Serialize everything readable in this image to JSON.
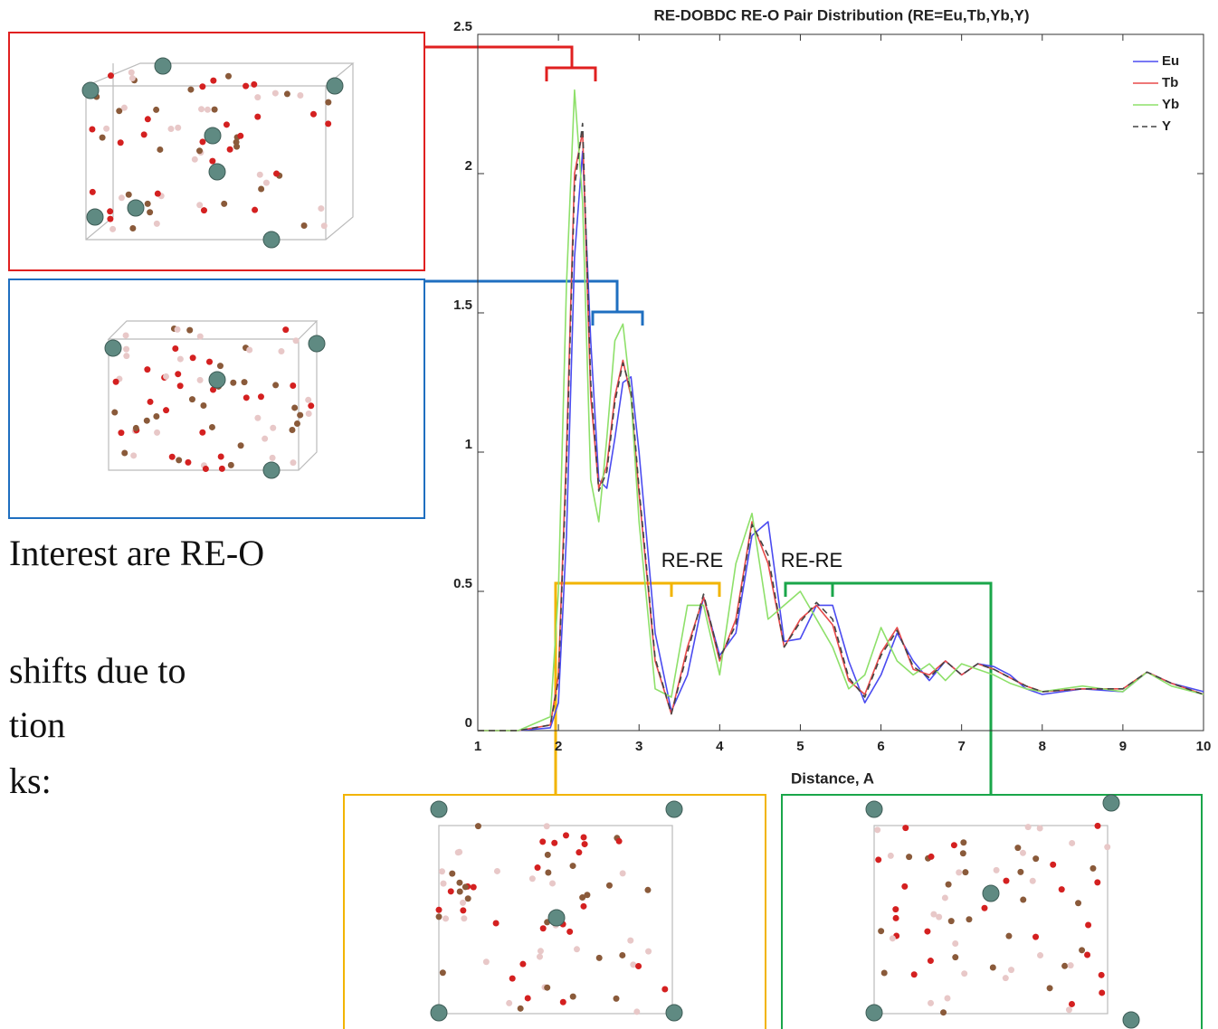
{
  "chart_data": {
    "type": "line",
    "title": "RE-DOBDC RE-O Pair Distribution (RE=Eu,Tb,Yb,Y)",
    "x_label": "Distance, A",
    "x": [
      1,
      1.5,
      1.9,
      2.0,
      2.1,
      2.2,
      2.3,
      2.4,
      2.5,
      2.6,
      2.7,
      2.8,
      2.9,
      3.0,
      3.2,
      3.4,
      3.6,
      3.8,
      4.0,
      4.2,
      4.4,
      4.6,
      4.8,
      5.0,
      5.2,
      5.4,
      5.6,
      5.8,
      6.0,
      6.2,
      6.4,
      6.6,
      6.8,
      7.0,
      7.2,
      7.4,
      7.6,
      7.8,
      8.0,
      8.5,
      9.0,
      9.3,
      9.6,
      10
    ],
    "series": [
      {
        "name": "Eu",
        "color": "#4b4bf0",
        "values": [
          0,
          0,
          0.01,
          0.1,
          0.7,
          1.7,
          2.08,
          1.4,
          0.9,
          0.87,
          1.05,
          1.25,
          1.27,
          1.0,
          0.35,
          0.07,
          0.2,
          0.48,
          0.27,
          0.35,
          0.7,
          0.75,
          0.32,
          0.33,
          0.45,
          0.45,
          0.25,
          0.1,
          0.2,
          0.35,
          0.25,
          0.18,
          0.25,
          0.2,
          0.24,
          0.23,
          0.2,
          0.15,
          0.13,
          0.15,
          0.14,
          0.21,
          0.17,
          0.14
        ]
      },
      {
        "name": "Tb",
        "color": "#e84a4a",
        "values": [
          0,
          0,
          0.02,
          0.2,
          1.0,
          2.0,
          2.15,
          1.2,
          0.87,
          0.95,
          1.2,
          1.33,
          1.2,
          0.85,
          0.25,
          0.06,
          0.3,
          0.48,
          0.25,
          0.4,
          0.75,
          0.6,
          0.3,
          0.4,
          0.45,
          0.38,
          0.18,
          0.13,
          0.28,
          0.37,
          0.22,
          0.2,
          0.25,
          0.2,
          0.24,
          0.22,
          0.19,
          0.16,
          0.14,
          0.15,
          0.15,
          0.21,
          0.17,
          0.13
        ]
      },
      {
        "name": "Yb",
        "color": "#8ee06a",
        "values": [
          0,
          0,
          0.05,
          0.5,
          1.6,
          2.3,
          1.9,
          0.9,
          0.75,
          1.05,
          1.4,
          1.46,
          1.2,
          0.75,
          0.15,
          0.12,
          0.45,
          0.45,
          0.2,
          0.6,
          0.78,
          0.4,
          0.45,
          0.5,
          0.4,
          0.3,
          0.15,
          0.2,
          0.37,
          0.25,
          0.2,
          0.24,
          0.18,
          0.24,
          0.22,
          0.2,
          0.17,
          0.15,
          0.14,
          0.16,
          0.14,
          0.21,
          0.16,
          0.13
        ]
      },
      {
        "name": "Y",
        "color": "#444444",
        "dashed": true,
        "values": [
          0,
          0,
          0.02,
          0.18,
          0.95,
          1.95,
          2.18,
          1.25,
          0.86,
          0.93,
          1.18,
          1.32,
          1.22,
          0.87,
          0.26,
          0.06,
          0.28,
          0.49,
          0.26,
          0.38,
          0.74,
          0.63,
          0.3,
          0.39,
          0.46,
          0.4,
          0.19,
          0.12,
          0.27,
          0.36,
          0.23,
          0.19,
          0.25,
          0.2,
          0.24,
          0.22,
          0.19,
          0.16,
          0.14,
          0.15,
          0.15,
          0.21,
          0.17,
          0.13
        ]
      }
    ],
    "xlim": [
      1,
      10
    ],
    "xticks": [
      1,
      2,
      3,
      4,
      5,
      6,
      7,
      8,
      9,
      10
    ],
    "ylim": [
      0,
      2.5
    ],
    "yticks": [
      0,
      0.5,
      1,
      1.5,
      2,
      2.5
    ],
    "grid": false,
    "legend": "top-right",
    "annotations": [
      "RE-RE",
      "RE-RE"
    ]
  },
  "slide_text": [
    "Interest are RE-O",
    "shifts due to",
    "tion",
    "ks:"
  ]
}
